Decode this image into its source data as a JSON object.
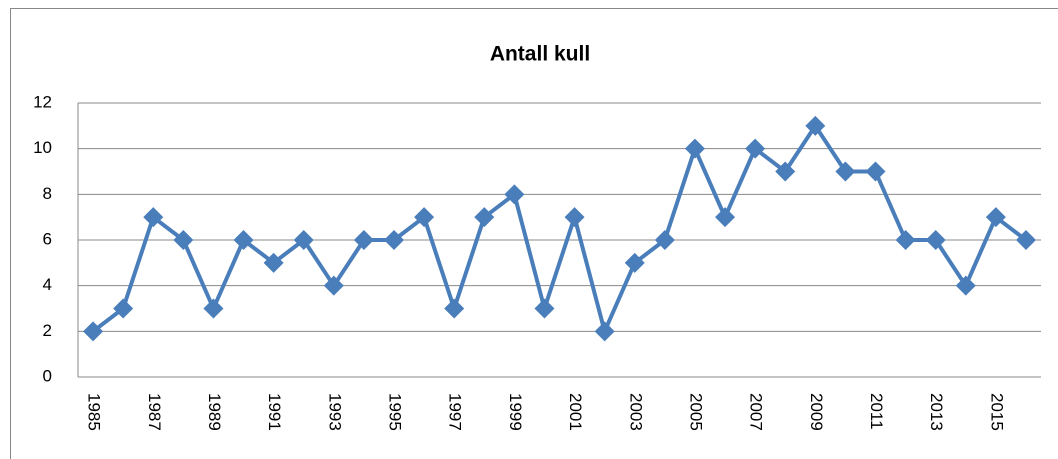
{
  "chart_data": {
    "type": "line",
    "title": "Antall kull",
    "x": [
      1985,
      1986,
      1987,
      1988,
      1989,
      1990,
      1991,
      1992,
      1993,
      1994,
      1995,
      1996,
      1997,
      1998,
      1999,
      2000,
      2001,
      2002,
      2003,
      2004,
      2005,
      2006,
      2007,
      2008,
      2009,
      2010,
      2011,
      2012,
      2013,
      2014,
      2015,
      2016
    ],
    "values": [
      2,
      3,
      7,
      6,
      3,
      6,
      5,
      6,
      4,
      6,
      6,
      7,
      3,
      7,
      8,
      3,
      7,
      2,
      5,
      6,
      10,
      7,
      10,
      9,
      11,
      9,
      9,
      6,
      6,
      4,
      7,
      6
    ],
    "color": "#4a7ebb",
    "xlim": [
      1984.5,
      2016.5
    ],
    "xticks": [
      1985,
      1987,
      1989,
      1991,
      1993,
      1995,
      1997,
      1999,
      2001,
      2003,
      2005,
      2007,
      2009,
      2011,
      2013,
      2015
    ],
    "ylim": [
      0,
      12
    ],
    "yticks": [
      0,
      2,
      4,
      6,
      8,
      10,
      12
    ],
    "grid": true
  }
}
